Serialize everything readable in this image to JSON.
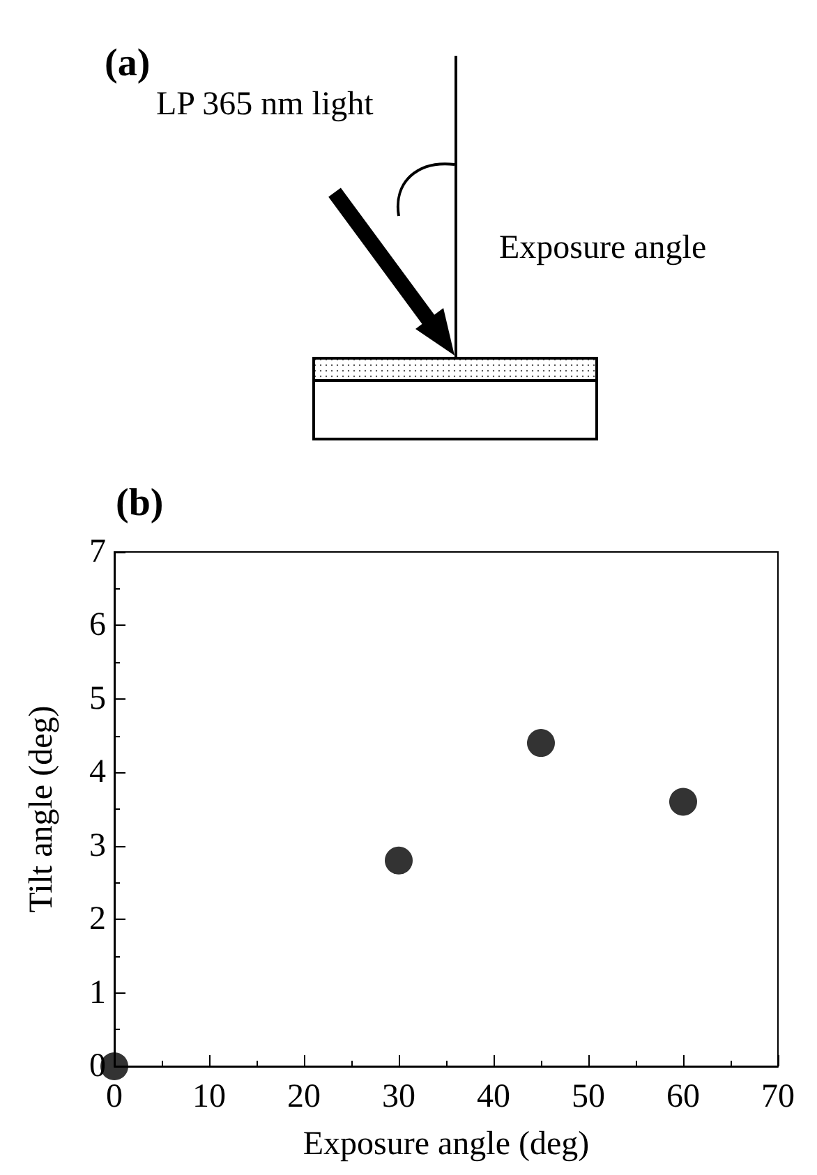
{
  "chart_data": [
    {
      "type": "other",
      "annotations": [
        "(a)",
        "LP 365 nm light",
        "Exposure angle"
      ]
    },
    {
      "type": "scatter",
      "title": "(b)",
      "xlabel": "Exposure angle (deg)",
      "ylabel": "Tilt angle (deg)",
      "x": [
        0,
        30,
        45,
        60
      ],
      "series": [
        {
          "color": "#000000",
          "values": [
            0,
            2.8,
            4.4,
            3.6
          ]
        }
      ],
      "marker": "circle",
      "xlim": [
        0,
        70
      ],
      "xticks": [
        0,
        10,
        20,
        30,
        40,
        50,
        60,
        70
      ],
      "ylim": [
        0,
        7
      ],
      "yticks": [
        0,
        1,
        2,
        3,
        4,
        5,
        6,
        7
      ]
    }
  ]
}
